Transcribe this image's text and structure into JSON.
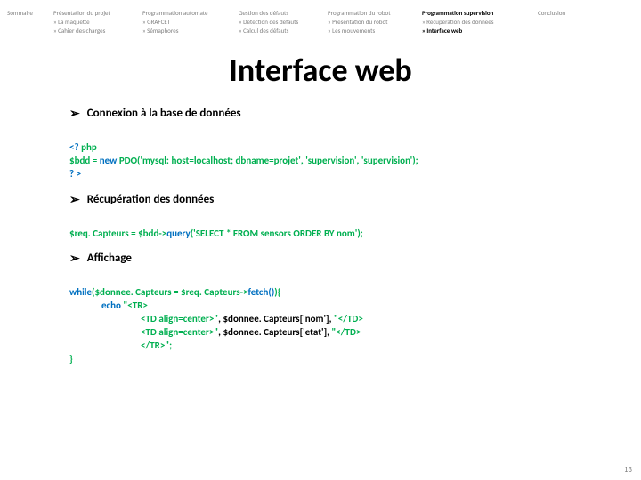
{
  "nav": {
    "col1": {
      "title": "Sommaire"
    },
    "col2": {
      "title": "Présentation du projet",
      "sub1": "» La maquette",
      "sub2": "» Cahier des charges"
    },
    "col3": {
      "title": "Programmation automate",
      "sub1": "» GRAFCET",
      "sub2": "» Sémaphores"
    },
    "col4": {
      "title": "Gestion des défauts",
      "sub1": "» Détection des défauts",
      "sub2": "» Calcul des défauts"
    },
    "col5": {
      "title": "Programmation du robot",
      "sub1": "» Présentation du robot",
      "sub2": "» Les mouvements"
    },
    "col6": {
      "title": "Programmation supervision",
      "sub1": "» Récupération des données",
      "sub2": "» Interface web"
    },
    "col7": {
      "title": "Conclusion"
    }
  },
  "title": "Interface web",
  "section1": {
    "heading": "Connexion à la base de données"
  },
  "code1": {
    "l1a": "<? ",
    "l1b": "php",
    "l2a": "$bdd = ",
    "l2b": "new ",
    "l2c": "PDO('mysql: host=localhost; dbname=projet', 'supervision', 'supervision');",
    "l3": "? >"
  },
  "section2": {
    "heading": "Récupération des données"
  },
  "code2": {
    "l1a": "$req. Capteurs = $bdd->",
    "l1b": "query",
    "l1c": "('SELECT * FROM sensors ORDER BY nom');"
  },
  "section3": {
    "heading": "Affichage"
  },
  "code3": {
    "l1a": "while",
    "l1b": "($donnee. Capteurs = $req. Capteurs->",
    "l1c": "fetch()",
    "l1d": "){",
    "l2a": "echo ",
    "l2b": "\"<TR>",
    "l3a": "<TD align=center>\"",
    "l3b": ", $donnee. Capteurs['nom'], ",
    "l3c": "\"</TD>",
    "l4a": "<TD align=center>\"",
    "l4b": ", $donnee. Capteurs['etat'], ",
    "l4c": "\"</TD>",
    "l5": "</TR>\";",
    "l6": "}"
  },
  "pagenum": "13",
  "colors": {
    "nav_inactive": "#808080",
    "nav_active": "#000000",
    "code_green": "#00af50",
    "code_blue": "#0070c0",
    "code_black": "#000000"
  }
}
